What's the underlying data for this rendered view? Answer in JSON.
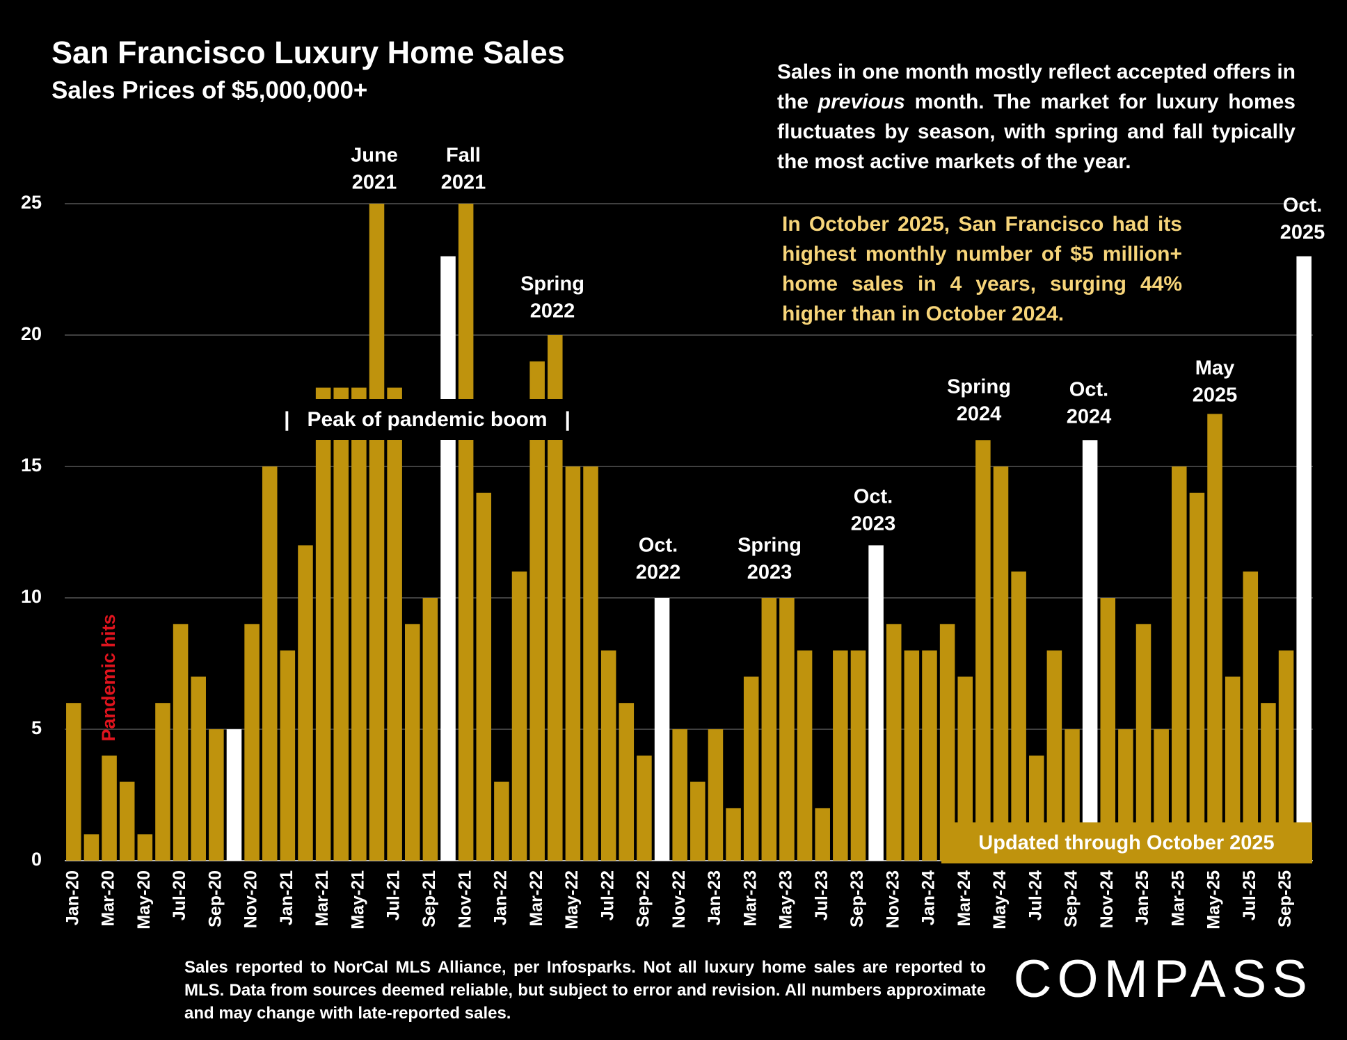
{
  "chart_data": {
    "type": "bar",
    "title": "San Francisco Luxury Home Sales",
    "subtitle": "Sales Prices of $5,000,000+",
    "note": [
      "Sales in one month mostly reflect accepted offers in the ",
      "previous",
      " month. The market for luxury homes fluctuates by season, with spring and fall typically the most active markets of the year."
    ],
    "highlight_note": "In October 2025, San Francisco had its highest monthly number of $5 million+ home sales in 4 years, surging 44% higher than in October 2024.",
    "band_label": "|   Peak of pandemic boom   |",
    "pandemic_label": "Pandemic hits",
    "updated_label": "Updated through October 2025",
    "footnote": "Sales reported to NorCal MLS Alliance, per  Infosparks. Not all luxury home sales are reported to MLS. Data from sources deemed reliable, but subject to error and revision. All numbers approximate and may change with late-reported sales.",
    "brand": "COMPASS",
    "annotations": [
      [
        "June",
        "2021"
      ],
      [
        "Fall",
        "2021"
      ],
      [
        "Spring",
        "2022"
      ],
      [
        "Oct.",
        "2022"
      ],
      [
        "Spring",
        "2023"
      ],
      [
        "Oct.",
        "2023"
      ],
      [
        "Spring",
        "2024"
      ],
      [
        "Oct.",
        "2024"
      ],
      [
        "May",
        "2025"
      ],
      [
        "Oct.",
        "2025"
      ]
    ],
    "categories": [
      "Jan-20",
      null,
      "Mar-20",
      null,
      "May-20",
      null,
      "Jul-20",
      null,
      "Sep-20",
      null,
      "Nov-20",
      null,
      "Jan-21",
      null,
      "Mar-21",
      null,
      "May-21",
      null,
      "Jul-21",
      null,
      "Sep-21",
      null,
      "Nov-21",
      null,
      "Jan-22",
      null,
      "Mar-22",
      null,
      "May-22",
      null,
      "Jul-22",
      null,
      "Sep-22",
      null,
      "Nov-22",
      null,
      "Jan-23",
      null,
      "Mar-23",
      null,
      "May-23",
      null,
      "Jul-23",
      null,
      "Sep-23",
      null,
      "Nov-23",
      null,
      "Jan-24",
      null,
      "Mar-24",
      null,
      "May-24",
      null,
      "Jul-24",
      null,
      "Sep-24",
      null,
      "Nov-24",
      null,
      "Jan-25",
      null,
      "Mar-25",
      null,
      "May-25",
      null,
      "Jul-25",
      null,
      "Sep-25",
      null
    ],
    "values": [
      6,
      1,
      4,
      3,
      1,
      6,
      9,
      7,
      5,
      5,
      9,
      15,
      8,
      12,
      18,
      18,
      18,
      25,
      18,
      9,
      10,
      23,
      25,
      14,
      3,
      11,
      19,
      20,
      15,
      15,
      8,
      6,
      4,
      10,
      5,
      3,
      5,
      2,
      7,
      10,
      10,
      8,
      2,
      8,
      8,
      12,
      9,
      8,
      8,
      9,
      7,
      16,
      15,
      11,
      4,
      8,
      5,
      16,
      10,
      5,
      9,
      5,
      15,
      14,
      17,
      7,
      11,
      6,
      8,
      23
    ],
    "colors": [
      "#bf930d",
      "#bf930d",
      "#bf930d",
      "#bf930d",
      "#bf930d",
      "#bf930d",
      "#bf930d",
      "#bf930d",
      "#bf930d",
      "#ffffff",
      "#bf930d",
      "#bf930d",
      "#bf930d",
      "#bf930d",
      "#bf930d",
      "#bf930d",
      "#bf930d",
      "#bf930d",
      "#bf930d",
      "#bf930d",
      "#bf930d",
      "#ffffff",
      "#bf930d",
      "#bf930d",
      "#bf930d",
      "#bf930d",
      "#bf930d",
      "#bf930d",
      "#bf930d",
      "#bf930d",
      "#bf930d",
      "#bf930d",
      "#bf930d",
      "#ffffff",
      "#bf930d",
      "#bf930d",
      "#bf930d",
      "#bf930d",
      "#bf930d",
      "#bf930d",
      "#bf930d",
      "#bf930d",
      "#bf930d",
      "#bf930d",
      "#bf930d",
      "#ffffff",
      "#bf930d",
      "#bf930d",
      "#bf930d",
      "#bf930d",
      "#bf930d",
      "#bf930d",
      "#bf930d",
      "#bf930d",
      "#bf930d",
      "#bf930d",
      "#bf930d",
      "#ffffff",
      "#bf930d",
      "#bf930d",
      "#bf930d",
      "#bf930d",
      "#bf930d",
      "#bf930d",
      "#bf930d",
      "#bf930d",
      "#bf930d",
      "#bf930d",
      "#bf930d",
      "#ffffff"
    ],
    "ylim": [
      0,
      25
    ],
    "yticks": [
      0,
      5,
      10,
      15,
      20,
      25
    ],
    "grid": true
  }
}
